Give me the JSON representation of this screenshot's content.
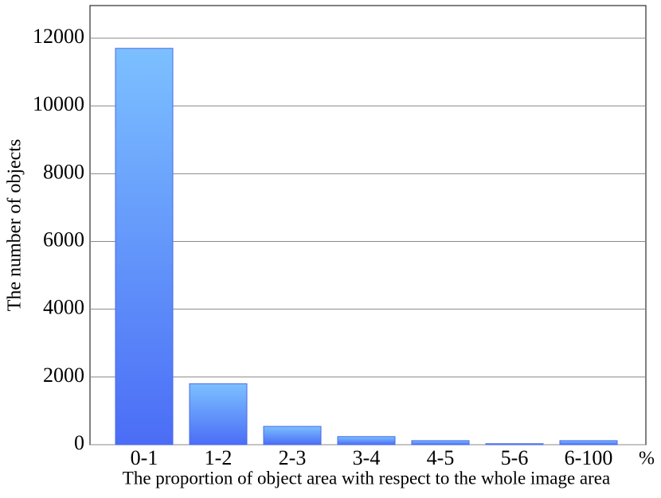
{
  "chart_data": {
    "type": "bar",
    "x_label": "The proportion of object area with respect to the whole image area",
    "x_unit": "%",
    "y_label": "The number of objects",
    "categories": [
      "0-1",
      "1-2",
      "2-3",
      "3-4",
      "4-5",
      "5-6",
      "6-100"
    ],
    "values": [
      11700,
      1800,
      540,
      240,
      120,
      30,
      120
    ],
    "ylim": [
      0,
      13000
    ],
    "yticks": [
      0,
      2000,
      4000,
      6000,
      8000,
      10000,
      12000
    ],
    "grid": true
  }
}
